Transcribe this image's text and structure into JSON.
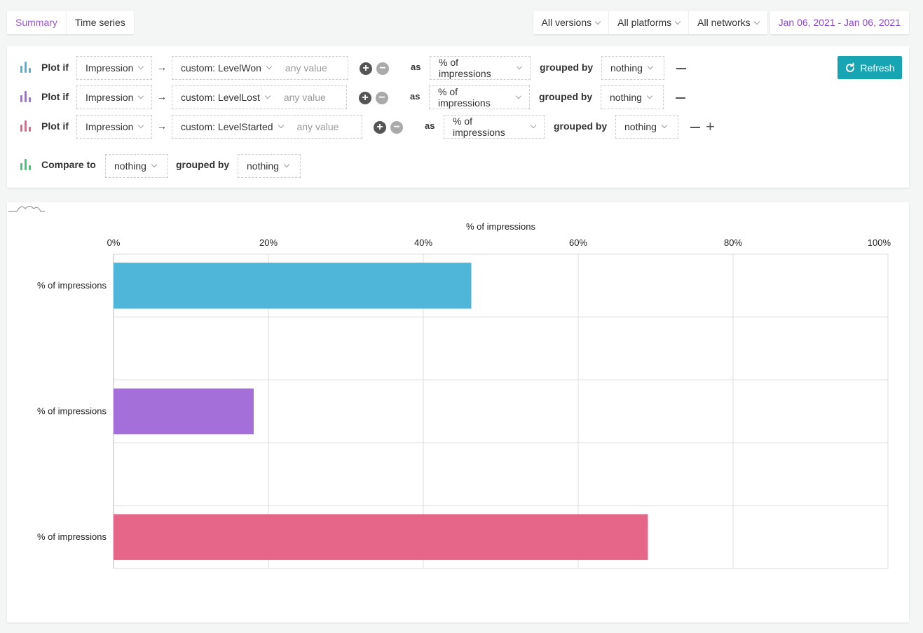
{
  "tabs": [
    {
      "label": "Summary"
    },
    {
      "label": "Time series"
    }
  ],
  "filters": {
    "versions": "All versions",
    "platforms": "All platforms",
    "networks": "All networks",
    "date_range": "Jan 06, 2021 - Jan 06, 2021"
  },
  "query": {
    "plot_label": "Plot if",
    "as_label": "as",
    "grouped_label": "grouped by",
    "compare_label": "Compare to",
    "refresh_label": "Refresh",
    "rows": [
      {
        "event": "Impression",
        "condition": "custom: LevelWon",
        "value_placeholder": "any value",
        "measure": "% of impressions",
        "group": "nothing",
        "color": "#4fb6d9"
      },
      {
        "event": "Impression",
        "condition": "custom: LevelLost",
        "value_placeholder": "any value",
        "measure": "% of impressions",
        "group": "nothing",
        "color": "#a46fd9"
      },
      {
        "event": "Impression",
        "condition": "custom: LevelStarted",
        "value_placeholder": "any value",
        "measure": "% of impressions",
        "group": "nothing",
        "color": "#e6668a"
      }
    ],
    "compare": {
      "target": "nothing",
      "group": "nothing",
      "color": "#44c97a"
    }
  },
  "chart_data": {
    "type": "bar",
    "orientation": "horizontal",
    "title": "% of impressions",
    "xlabel": "% of impressions",
    "ylabel": "",
    "xlim": [
      0,
      100
    ],
    "x_ticks": [
      "0%",
      "20%",
      "40%",
      "60%",
      "80%",
      "100%"
    ],
    "categories": [
      "% of impressions",
      "",
      "% of impressions",
      "",
      "% of impressions"
    ],
    "series": [
      {
        "name": "custom: LevelWon",
        "value": 46.2,
        "color": "#4fb6d9"
      },
      {
        "name": "custom: LevelLost",
        "value": 18.1,
        "color": "#a46fd9"
      },
      {
        "name": "custom: LevelStarted",
        "value": 69.0,
        "color": "#e6668a"
      }
    ],
    "grid": true
  }
}
